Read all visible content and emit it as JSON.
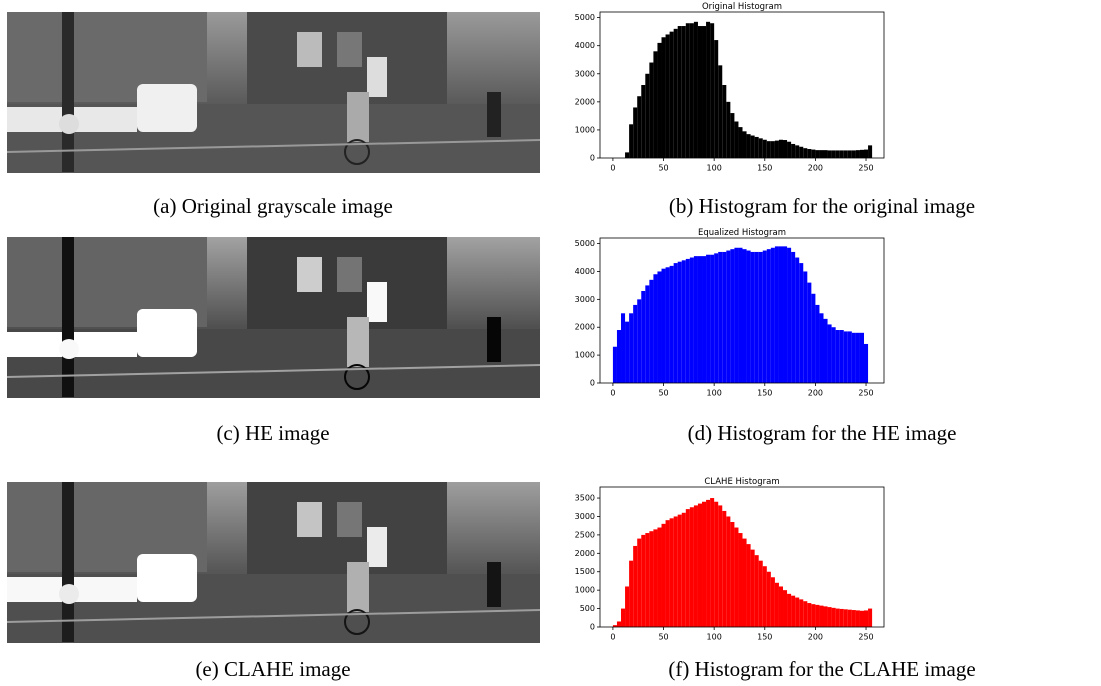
{
  "panels": [
    {
      "caption": "(a) Original grayscale image"
    },
    {
      "caption": "(b) Histogram for the original image"
    },
    {
      "caption": "(c) HE image"
    },
    {
      "caption": "(d) Histogram for the HE image"
    },
    {
      "caption": "(e) CLAHE image"
    },
    {
      "caption": "(f) Histogram for the CLAHE image"
    }
  ],
  "chart_data": [
    {
      "type": "histogram",
      "title": "Original Histogram",
      "color": "#000000",
      "bins": [
        0,
        4,
        8,
        12,
        16,
        20,
        24,
        28,
        32,
        36,
        40,
        44,
        48,
        52,
        56,
        60,
        64,
        68,
        72,
        76,
        80,
        84,
        88,
        92,
        96,
        100,
        104,
        108,
        112,
        116,
        120,
        124,
        128,
        132,
        136,
        140,
        144,
        148,
        152,
        156,
        160,
        164,
        168,
        172,
        176,
        180,
        184,
        188,
        192,
        196,
        200,
        204,
        208,
        212,
        216,
        220,
        224,
        228,
        232,
        236,
        240,
        244,
        248,
        252,
        256
      ],
      "counts": [
        0,
        0,
        0,
        200,
        1200,
        1800,
        2200,
        2600,
        3000,
        3400,
        3800,
        4100,
        4300,
        4400,
        4500,
        4600,
        4700,
        4700,
        4800,
        4800,
        4850,
        4700,
        4700,
        4850,
        4800,
        4200,
        3300,
        2600,
        2000,
        1600,
        1300,
        1100,
        950,
        850,
        800,
        750,
        700,
        650,
        600,
        600,
        620,
        650,
        640,
        580,
        500,
        450,
        400,
        350,
        320,
        300,
        280,
        280,
        280,
        270,
        270,
        270,
        270,
        270,
        270,
        270,
        280,
        290,
        300,
        450
      ],
      "xlim": [
        -12.75,
        267.75
      ],
      "xticks": [
        0,
        50,
        100,
        150,
        200,
        250
      ],
      "ylim": [
        0,
        5200
      ],
      "yticks": [
        0,
        1000,
        2000,
        3000,
        4000,
        5000
      ]
    },
    {
      "type": "histogram",
      "title": "Equalized Histogram",
      "color": "#0000ff",
      "bins": [
        0,
        4,
        8,
        12,
        16,
        20,
        24,
        28,
        32,
        36,
        40,
        44,
        48,
        52,
        56,
        60,
        64,
        68,
        72,
        76,
        80,
        84,
        88,
        92,
        96,
        100,
        104,
        108,
        112,
        116,
        120,
        124,
        128,
        132,
        136,
        140,
        144,
        148,
        152,
        156,
        160,
        164,
        168,
        172,
        176,
        180,
        184,
        188,
        192,
        196,
        200,
        204,
        208,
        212,
        216,
        220,
        224,
        228,
        232,
        236,
        240,
        244,
        248,
        252,
        256
      ],
      "counts": [
        1300,
        1900,
        2500,
        2200,
        2500,
        2800,
        3000,
        3300,
        3500,
        3700,
        3900,
        4000,
        4100,
        4150,
        4200,
        4300,
        4350,
        4400,
        4450,
        4500,
        4550,
        4550,
        4550,
        4600,
        4600,
        4650,
        4700,
        4700,
        4750,
        4800,
        4850,
        4850,
        4800,
        4750,
        4700,
        4700,
        4700,
        4750,
        4800,
        4850,
        4900,
        4900,
        4900,
        4850,
        4700,
        4500,
        4300,
        4000,
        3600,
        3200,
        2800,
        2500,
        2300,
        2100,
        2000,
        1900,
        1900,
        1850,
        1850,
        1800,
        1800,
        1800,
        1400,
        0
      ],
      "xlim": [
        -12.75,
        267.75
      ],
      "xticks": [
        0,
        50,
        100,
        150,
        200,
        250
      ],
      "ylim": [
        0,
        5200
      ],
      "yticks": [
        0,
        1000,
        2000,
        3000,
        4000,
        5000
      ]
    },
    {
      "type": "histogram",
      "title": "CLAHE Histogram",
      "color": "#ff0000",
      "bins": [
        0,
        4,
        8,
        12,
        16,
        20,
        24,
        28,
        32,
        36,
        40,
        44,
        48,
        52,
        56,
        60,
        64,
        68,
        72,
        76,
        80,
        84,
        88,
        92,
        96,
        100,
        104,
        108,
        112,
        116,
        120,
        124,
        128,
        132,
        136,
        140,
        144,
        148,
        152,
        156,
        160,
        164,
        168,
        172,
        176,
        180,
        184,
        188,
        192,
        196,
        200,
        204,
        208,
        212,
        216,
        220,
        224,
        228,
        232,
        236,
        240,
        244,
        248,
        252,
        256
      ],
      "counts": [
        50,
        150,
        500,
        1100,
        1800,
        2200,
        2400,
        2500,
        2550,
        2600,
        2650,
        2700,
        2800,
        2900,
        2950,
        3000,
        3050,
        3100,
        3200,
        3250,
        3300,
        3350,
        3400,
        3450,
        3500,
        3400,
        3300,
        3150,
        3000,
        2850,
        2700,
        2550,
        2400,
        2250,
        2100,
        1950,
        1800,
        1650,
        1500,
        1350,
        1200,
        1100,
        1000,
        900,
        850,
        800,
        750,
        700,
        650,
        620,
        600,
        580,
        560,
        540,
        520,
        500,
        490,
        480,
        470,
        460,
        450,
        440,
        450,
        500
      ],
      "xlim": [
        -12.75,
        267.75
      ],
      "xticks": [
        0,
        50,
        100,
        150,
        200,
        250
      ],
      "ylim": [
        0,
        3800
      ],
      "yticks": [
        0,
        500,
        1000,
        1500,
        2000,
        2500,
        3000,
        3500
      ]
    }
  ]
}
